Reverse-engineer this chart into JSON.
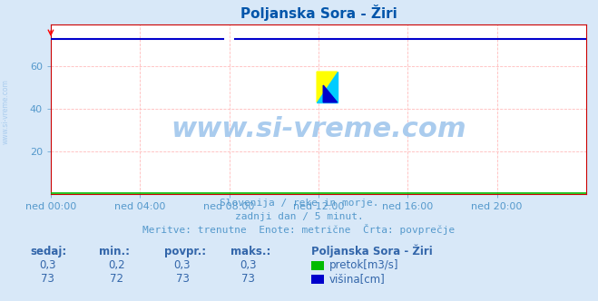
{
  "title": "Poljanska Sora - Žiri",
  "bg_color": "#d8e8f8",
  "plot_bg_color": "#ffffff",
  "x_ticks_labels": [
    "ned 00:00",
    "ned 04:00",
    "ned 08:00",
    "ned 12:00",
    "ned 16:00",
    "ned 20:00"
  ],
  "x_ticks_pos": [
    0,
    4,
    8,
    12,
    16,
    20
  ],
  "x_min": 0,
  "x_max": 24,
  "y_min": 0,
  "y_max": 80,
  "y_ticks": [
    20,
    40,
    60
  ],
  "pretok_color": "#00bb00",
  "visina_color": "#0000cc",
  "watermark": "www.si-vreme.com",
  "watermark_color": "#aaccee",
  "side_label": "www.si-vreme.com",
  "subtitle1": "Slovenija / reke in morje.",
  "subtitle2": "zadnji dan / 5 minut.",
  "subtitle3": "Meritve: trenutne  Enote: metrične  Črta: povprečje",
  "legend_title": "Poljanska Sora - Žiri",
  "stat_headers": [
    "sedaj:",
    "min.:",
    "povpr.:",
    "maks.:"
  ],
  "stat_pretok": [
    "0,3",
    "0,2",
    "0,3",
    "0,3"
  ],
  "stat_visina": [
    "73",
    "72",
    "73",
    "73"
  ],
  "legend_pretok": "pretok[m3/s]",
  "legend_visina": "višina[cm]",
  "grid_color": "#ffbbbb",
  "axis_color": "#cc0000",
  "title_color": "#0055aa",
  "text_color": "#5599cc",
  "stat_color": "#3366aa"
}
